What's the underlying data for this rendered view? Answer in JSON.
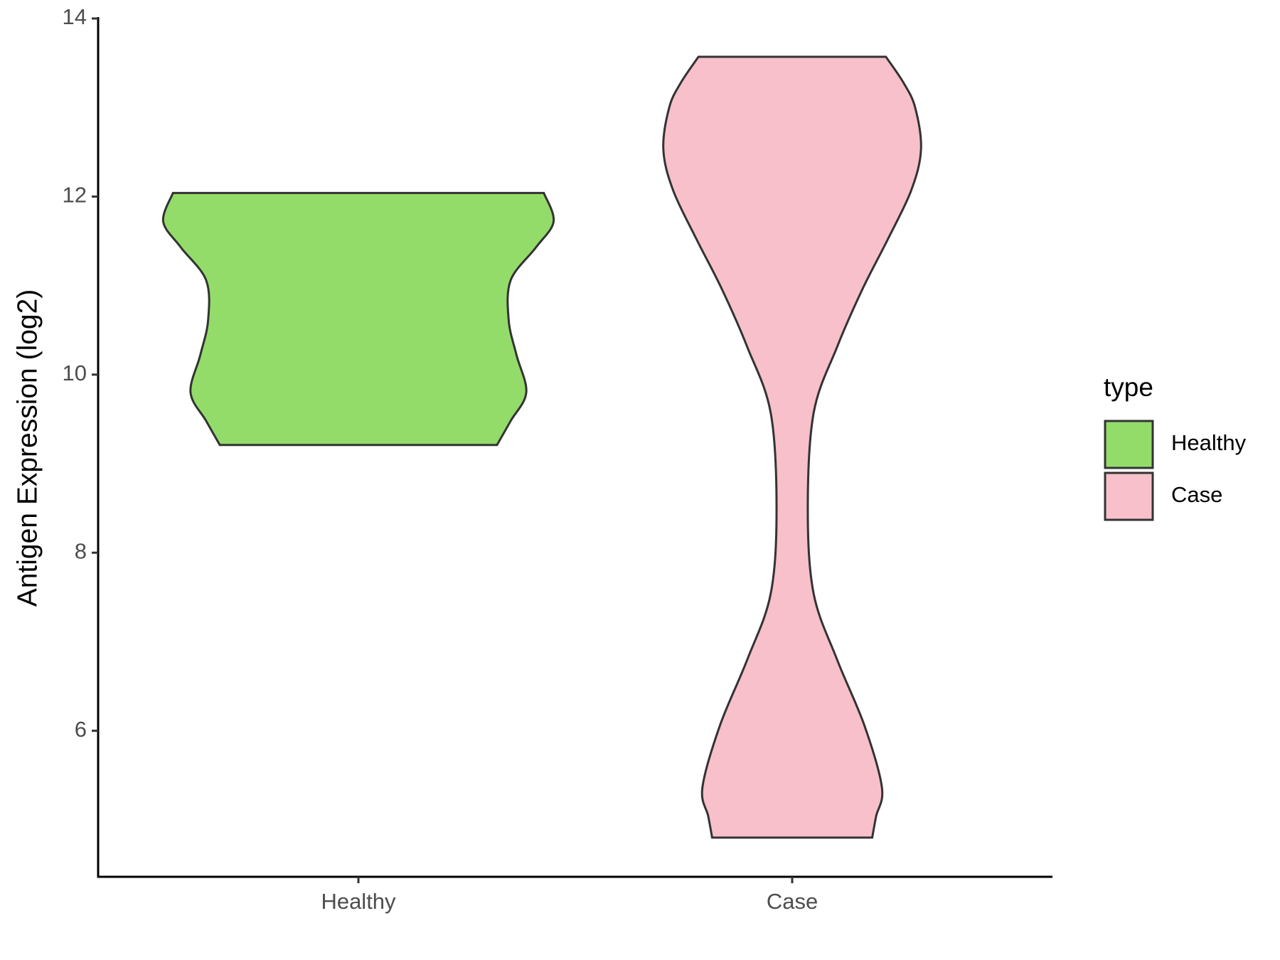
{
  "chart_data": {
    "type": "violin",
    "y_label": "Antigen Expression (log2)",
    "categories": [
      "Healthy",
      "Case"
    ],
    "ylim": [
      4.36,
      14
    ],
    "yticks": [
      6,
      8,
      10,
      12,
      14
    ],
    "legend_title": "type",
    "legend": "right",
    "series": [
      {
        "name": "Healthy",
        "color": "#93dc6a",
        "y": [
          9.21,
          9.48,
          9.8,
          10.22,
          10.61,
          11.06,
          11.43,
          11.72,
          12.04
        ],
        "density": [
          0.71,
          0.78,
          0.86,
          0.81,
          0.77,
          0.78,
          0.91,
          1.0,
          0.95
        ]
      },
      {
        "name": "Case",
        "color": "#f7c0cb",
        "y": [
          4.8,
          5.04,
          5.36,
          6.06,
          6.8,
          7.54,
          8.49,
          9.57,
          10.31,
          10.96,
          11.52,
          12.07,
          12.53,
          13.0,
          13.28,
          13.57
        ],
        "density": [
          0.41,
          0.43,
          0.46,
          0.37,
          0.23,
          0.11,
          0.08,
          0.11,
          0.23,
          0.36,
          0.49,
          0.61,
          0.66,
          0.63,
          0.57,
          0.48
        ]
      }
    ]
  }
}
